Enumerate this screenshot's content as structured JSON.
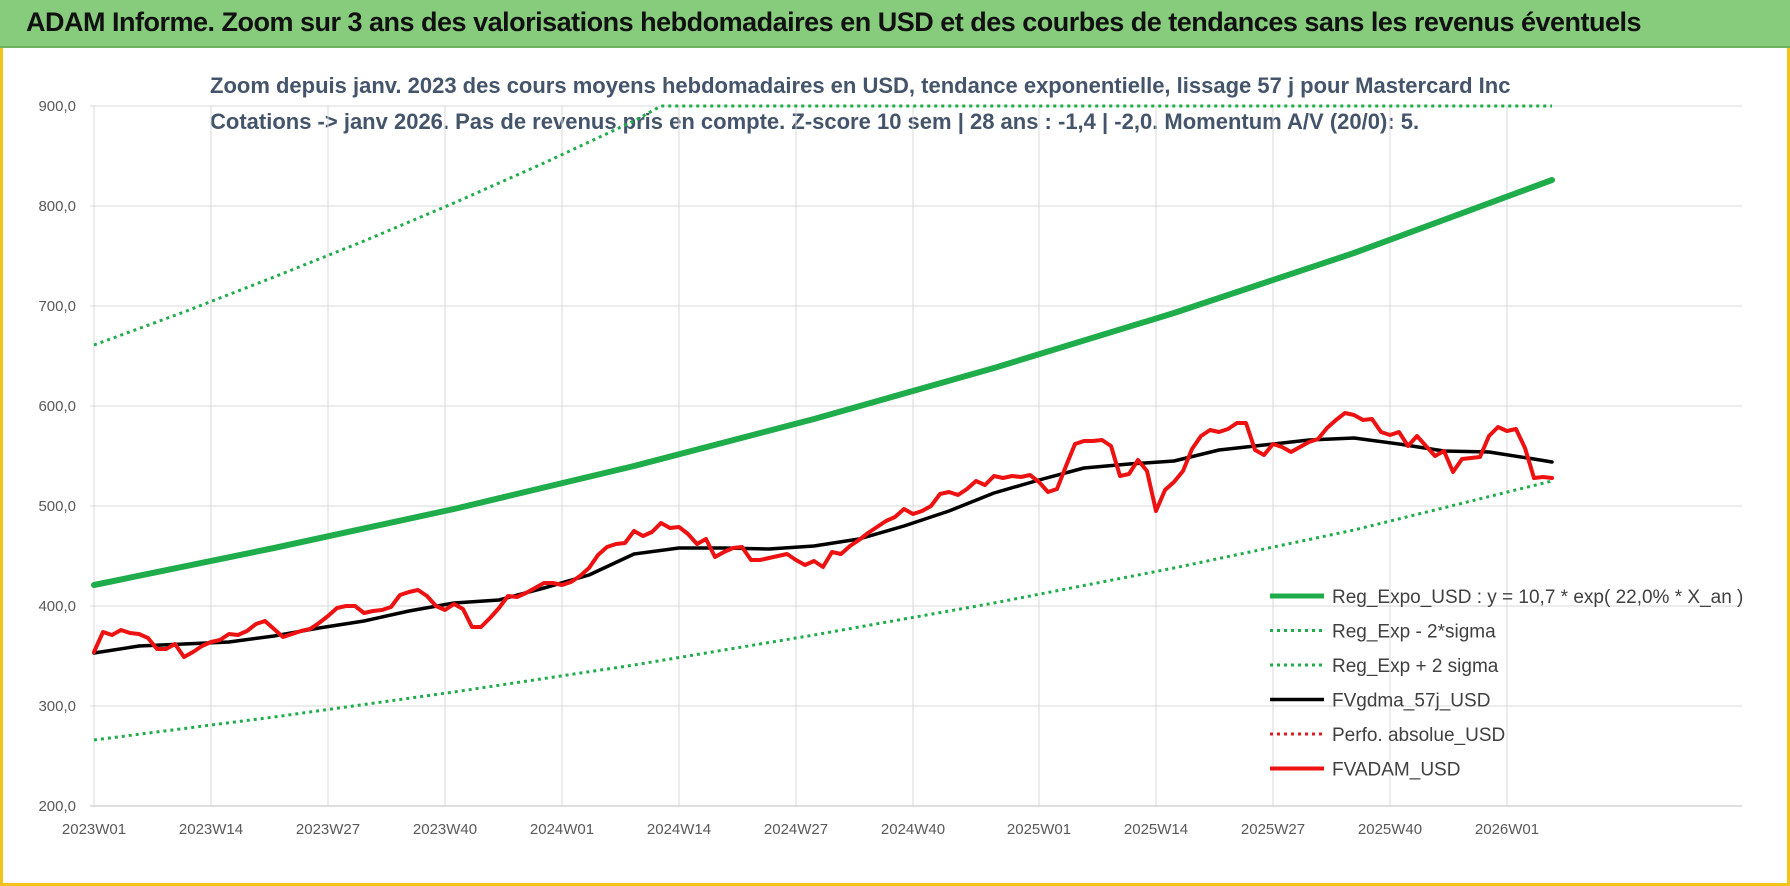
{
  "banner": {
    "title": "ADAM Informe. Zoom sur 3 ans des valorisations hebdomadaires en USD et des courbes de tendances sans les revenus éventuels",
    "color": "#86cc7c"
  },
  "chart_data": {
    "type": "line",
    "title_line1": "Zoom depuis janv. 2023 des cours moyens hebdomadaires en USD, tendance exponentielle, lissage 57 j pour Mastercard Inc",
    "title_line2": "Cotations -> janv 2026. Pas de revenus pris en compte. Z-score 10 sem | 28 ans : -1,4 | -2,0. Momentum A/V (20/0): 5.",
    "ylim": [
      200,
      900
    ],
    "yticks": [
      "200,0",
      "300,0",
      "400,0",
      "500,0",
      "600,0",
      "700,0",
      "800,0",
      "900,0"
    ],
    "ytick_values": [
      200,
      300,
      400,
      500,
      600,
      700,
      800,
      900
    ],
    "xlim": [
      0,
      162
    ],
    "xticks": [
      "2023W01",
      "2023W14",
      "2023W27",
      "2023W40",
      "2024W01",
      "2024W14",
      "2024W27",
      "2024W40",
      "2025W01",
      "2025W14",
      "2025W27",
      "2025W40",
      "2026W01"
    ],
    "xtick_positions": [
      0,
      13,
      26,
      39,
      52,
      65,
      78,
      91,
      105,
      118,
      131,
      144,
      157
    ],
    "grid": true,
    "legend_placement": "bottom-right",
    "series": [
      {
        "name": "Reg_Expo_USD : y = 10,7 * exp( 22,0% * X_an )",
        "color": "#1fac4a",
        "style": "solid",
        "width": 6,
        "x": [
          0,
          20,
          40,
          60,
          80,
          100,
          120,
          140,
          162
        ],
        "y": [
          421,
          458,
          497,
          540,
          587,
          638,
          693,
          753,
          826
        ]
      },
      {
        "name": "Reg_Exp - 2*sigma",
        "color": "#1fac4a",
        "style": "dotted",
        "width": 3,
        "x": [
          0,
          20,
          40,
          60,
          80,
          100,
          120,
          140,
          162
        ],
        "y": [
          266,
          289,
          314,
          341,
          371,
          403,
          438,
          476,
          525
        ]
      },
      {
        "name": "Reg_Exp + 2 sigma",
        "color": "#1fac4a",
        "style": "dotted",
        "width": 3,
        "x": [
          0,
          10,
          20,
          30,
          40,
          50,
          60,
          63,
          134,
          162
        ],
        "y": [
          661,
          694,
          729,
          765,
          803,
          843,
          885,
          900,
          900,
          900
        ]
      },
      {
        "name": "FVgdma_57j_USD",
        "color": "#000000",
        "style": "solid",
        "width": 3.5,
        "x": [
          0,
          5,
          10,
          15,
          20,
          25,
          30,
          35,
          40,
          45,
          50,
          55,
          60,
          65,
          70,
          75,
          80,
          85,
          90,
          95,
          100,
          105,
          110,
          115,
          120,
          125,
          130,
          135,
          140,
          145,
          150,
          155,
          160,
          162
        ],
        "y": [
          353,
          360,
          362,
          364,
          370,
          378,
          385,
          395,
          403,
          406,
          418,
          431,
          452,
          458,
          458,
          457,
          460,
          467,
          480,
          495,
          513,
          526,
          538,
          542,
          545,
          556,
          561,
          566,
          568,
          562,
          555,
          554,
          547,
          544
        ]
      },
      {
        "name": "Perfo. absolue_USD",
        "color": "#d91f26",
        "style": "dotted",
        "width": 3,
        "x": [],
        "y": []
      },
      {
        "name": "FVADAM_USD",
        "color": "#ee1111",
        "style": "solid",
        "width": 4,
        "x": [
          0,
          1,
          2,
          3,
          4,
          5,
          6,
          7,
          8,
          9,
          10,
          11,
          12,
          13,
          14,
          15,
          16,
          17,
          18,
          19,
          20,
          21,
          22,
          23,
          24,
          25,
          26,
          27,
          28,
          29,
          30,
          31,
          32,
          33,
          34,
          35,
          36,
          37,
          38,
          39,
          40,
          41,
          42,
          43,
          44,
          45,
          46,
          47,
          48,
          49,
          50,
          51,
          52,
          53,
          54,
          55,
          56,
          57,
          58,
          59,
          60,
          61,
          62,
          63,
          64,
          65,
          66,
          67,
          68,
          69,
          70,
          71,
          72,
          73,
          74,
          75,
          76,
          77,
          78,
          79,
          80,
          81,
          82,
          83,
          84,
          85,
          86,
          87,
          88,
          89,
          90,
          91,
          92,
          93,
          94,
          95,
          96,
          97,
          98,
          99,
          100,
          101,
          102,
          103,
          104,
          105,
          106,
          107,
          108,
          109,
          110,
          111,
          112,
          113,
          114,
          115,
          116,
          117,
          118,
          119,
          120,
          121,
          122,
          123,
          124,
          125,
          126,
          127,
          128,
          129,
          130,
          131,
          132,
          133,
          134,
          135,
          136,
          137,
          138,
          139,
          140,
          141,
          142,
          143,
          144,
          145,
          146,
          147,
          148,
          149,
          150,
          151,
          152,
          153,
          154,
          155,
          156,
          157,
          158,
          159,
          160,
          161,
          162
        ],
        "y": [
          354,
          374,
          371,
          376,
          373,
          372,
          368,
          357,
          357,
          362,
          349,
          354,
          360,
          364,
          366,
          372,
          371,
          375,
          382,
          385,
          377,
          369,
          372,
          375,
          377,
          383,
          390,
          398,
          400,
          400,
          393,
          395,
          396,
          399,
          411,
          414,
          416,
          410,
          400,
          396,
          402,
          397,
          379,
          379,
          388,
          398,
          410,
          409,
          413,
          418,
          423,
          423,
          421,
          424,
          430,
          438,
          451,
          459,
          462,
          463,
          475,
          470,
          474,
          483,
          478,
          479,
          472,
          462,
          467,
          449,
          454,
          458,
          459,
          446,
          446,
          448,
          450,
          452,
          446,
          441,
          445,
          439,
          454,
          452,
          460,
          466,
          473,
          479,
          485,
          489,
          497,
          492,
          495,
          500,
          512,
          514,
          511,
          517,
          525,
          521,
          530,
          528,
          530,
          529,
          531,
          524,
          514,
          517,
          540,
          562,
          565,
          565,
          566,
          560,
          530,
          532,
          546,
          535,
          495,
          516,
          524,
          535,
          557,
          570,
          576,
          574,
          577,
          583,
          583,
          556,
          551,
          562,
          559,
          554,
          559,
          564,
          567,
          578,
          586,
          593,
          591,
          586,
          587,
          574,
          571,
          574,
          560,
          570,
          560,
          550,
          555,
          534,
          547,
          548,
          549,
          570,
          579,
          575,
          577,
          558,
          528,
          529,
          528
        ]
      }
    ]
  }
}
